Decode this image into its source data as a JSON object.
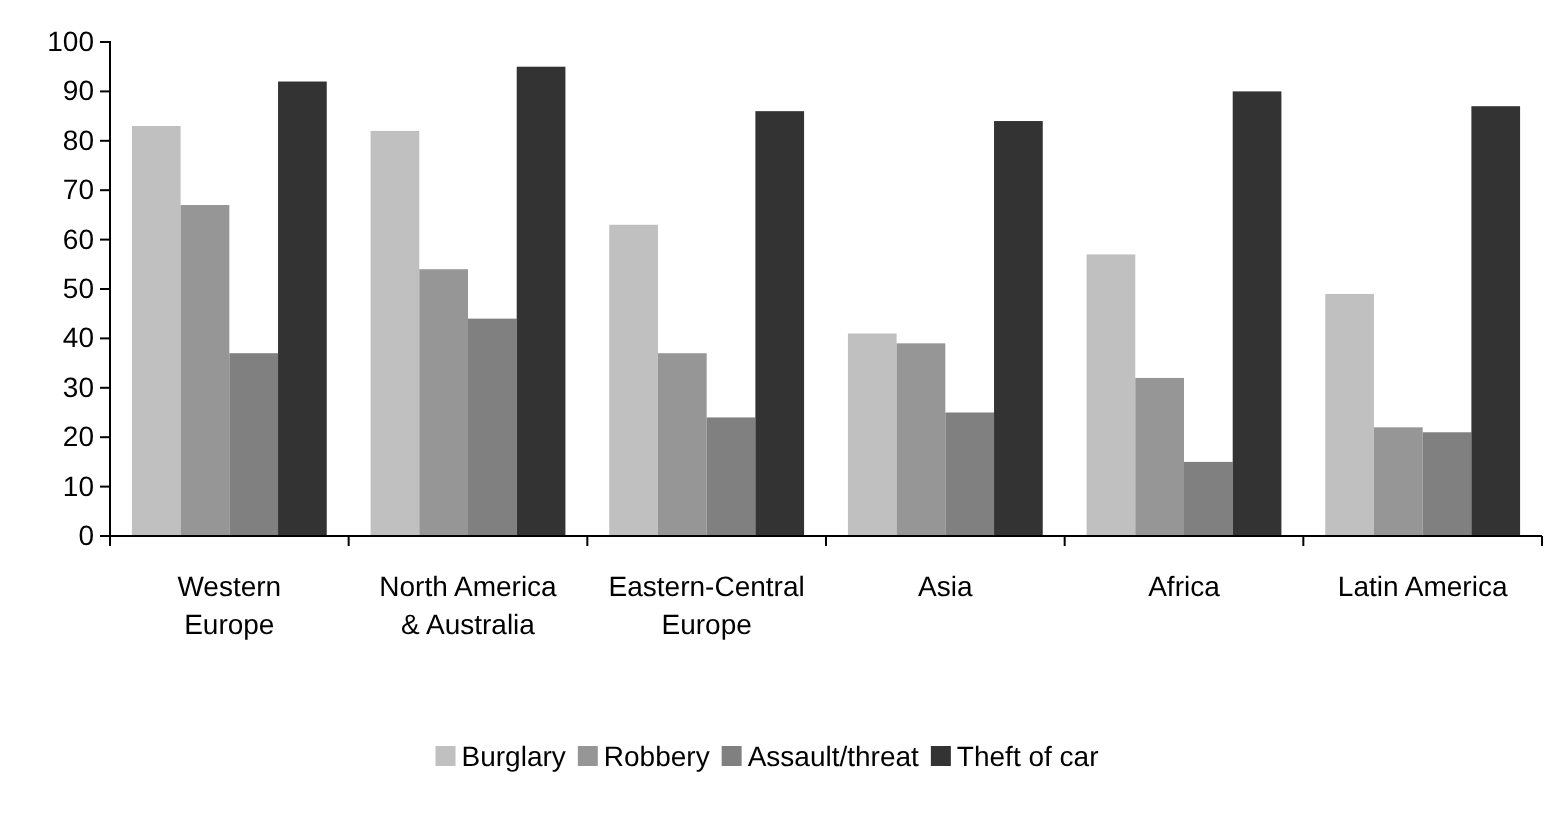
{
  "chart_data": {
    "type": "bar",
    "categories": [
      "Western Europe",
      "North America & Australia",
      "Eastern-Central Europe",
      "Asia",
      "Africa",
      "Latin America"
    ],
    "series": [
      {
        "name": "Burglary",
        "color": "#c0c0c0",
        "values": [
          83,
          82,
          63,
          41,
          57,
          49
        ]
      },
      {
        "name": "Robbery",
        "color": "#969696",
        "values": [
          67,
          54,
          37,
          39,
          32,
          22
        ]
      },
      {
        "name": "Assault/threat",
        "color": "#808080",
        "values": [
          37,
          44,
          24,
          25,
          15,
          21
        ]
      },
      {
        "name": "Theft of car",
        "color": "#333333",
        "values": [
          92,
          95,
          86,
          84,
          90,
          87
        ]
      }
    ],
    "ylim": [
      0,
      100
    ],
    "yticks": [
      0,
      10,
      20,
      30,
      40,
      50,
      60,
      70,
      80,
      90,
      100
    ],
    "grid": false,
    "legend": "bottom"
  }
}
